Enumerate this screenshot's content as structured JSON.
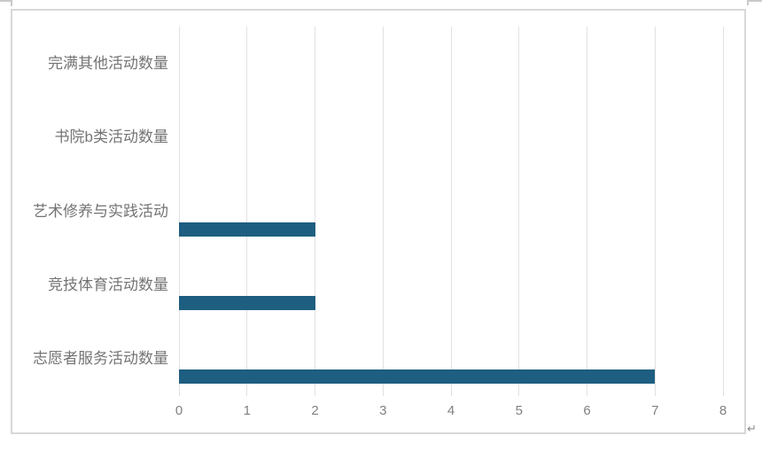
{
  "page": {
    "paragraph_mark": "↵"
  },
  "chart_data": {
    "type": "bar",
    "orientation": "horizontal",
    "title": "",
    "xlabel": "",
    "ylabel": "",
    "categories": [
      "完满其他活动数量",
      "书院b类活动数量",
      "艺术修养与实践活动",
      "竞技体育活动数量",
      "志愿者服务活动数量"
    ],
    "values": [
      0,
      0,
      2,
      2,
      7
    ],
    "xlim": [
      0,
      8
    ],
    "x_ticks": [
      0,
      1,
      2,
      3,
      4,
      5,
      6,
      7,
      8
    ],
    "grid": true,
    "legend": "none",
    "colors": {
      "bar": "#1E5E80",
      "gridline": "#E1E1E1",
      "frame_border": "#D8D8D8",
      "tick_label": "#808080",
      "category_label": "#747474",
      "fragment": "#C9C9C9"
    }
  }
}
